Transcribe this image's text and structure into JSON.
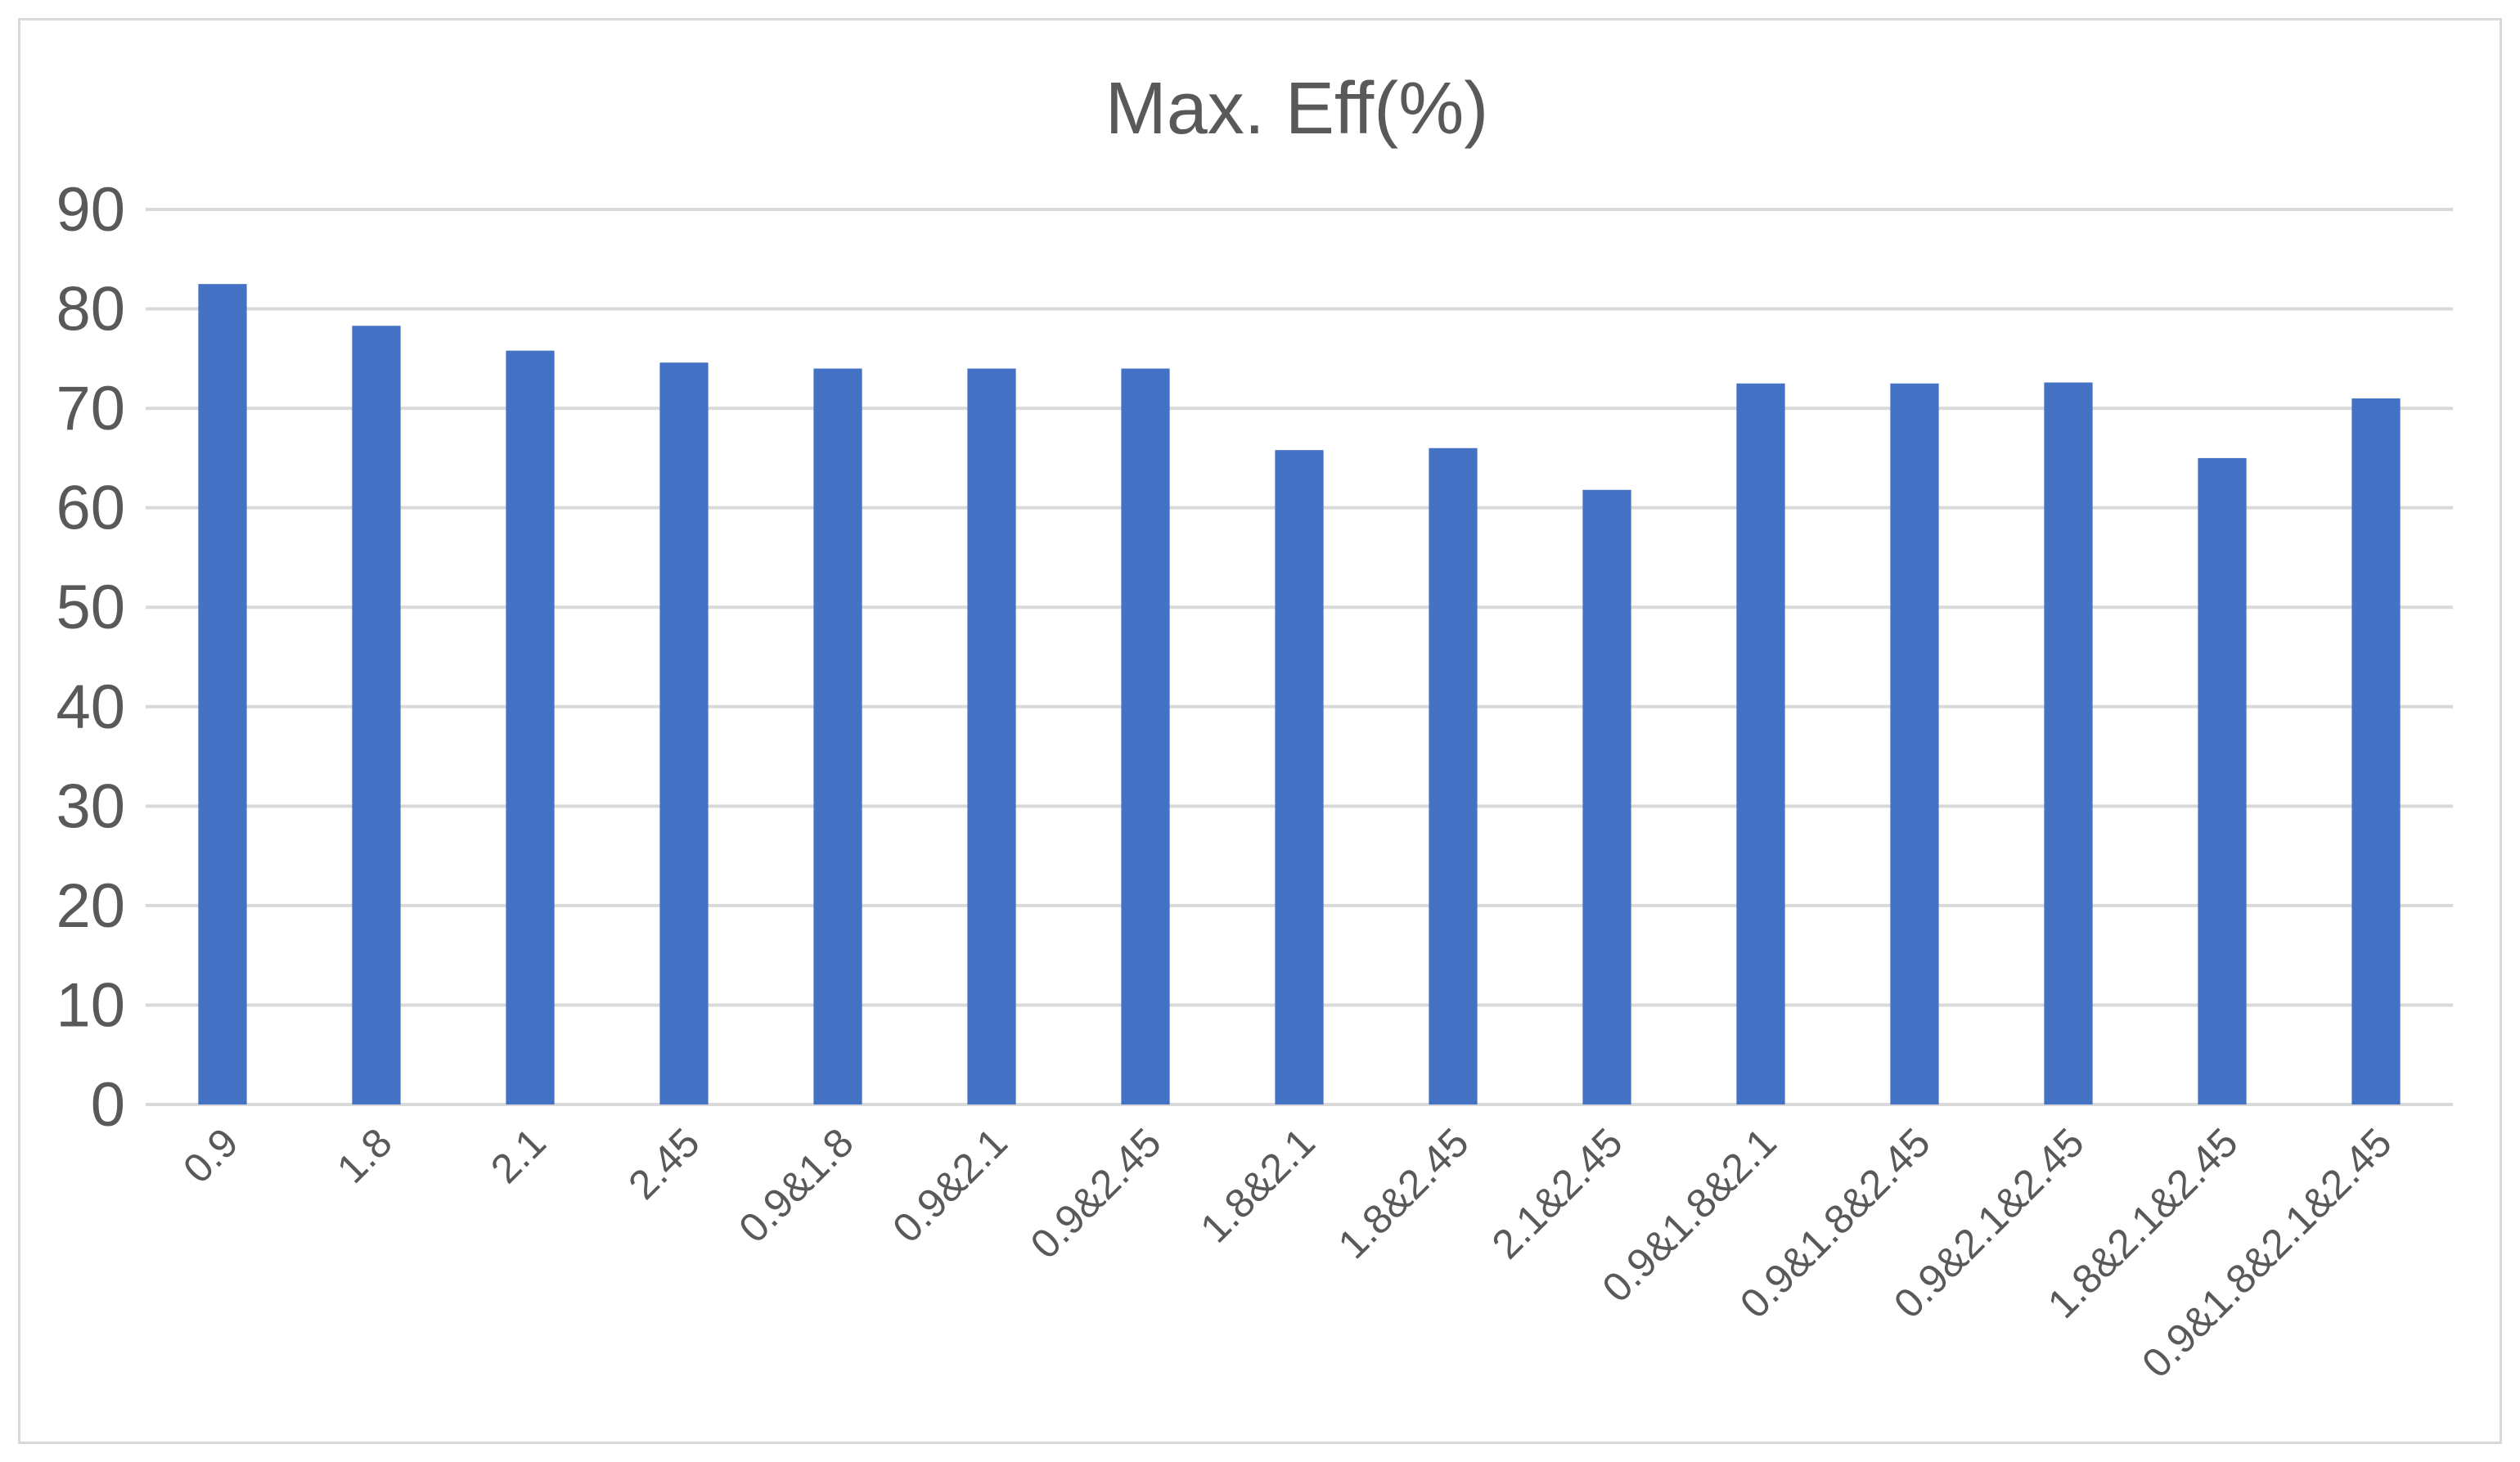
{
  "chart_data": {
    "type": "bar",
    "title": "Max. Eff(%)",
    "xlabel": "",
    "ylabel": "",
    "ylim": [
      0,
      90
    ],
    "yticks": [
      0,
      10,
      20,
      30,
      40,
      50,
      60,
      70,
      80,
      90
    ],
    "grid": true,
    "legend": "none",
    "categories": [
      "0.9",
      "1.8",
      "2.1",
      "2.45",
      "0.9&1.8",
      "0.9&2.1",
      "0.9&2.45",
      "1.8&2.1",
      "1.8&2.45",
      "2.1&2.45",
      "0.9&1.8&2.1",
      "0.9&1.8&2.45",
      "0.9&2.1&2.45",
      "1.8&2.1&2.45",
      "0.9&1.8&2.1&2.45"
    ],
    "values": [
      82.5,
      78.3,
      75.8,
      74.6,
      74.0,
      74.0,
      74.0,
      65.8,
      66.0,
      61.8,
      72.5,
      72.5,
      72.6,
      65.0,
      71.0
    ],
    "bar_color": "#4472c4",
    "text_color": "#595959",
    "grid_color": "#d9d9d9"
  }
}
